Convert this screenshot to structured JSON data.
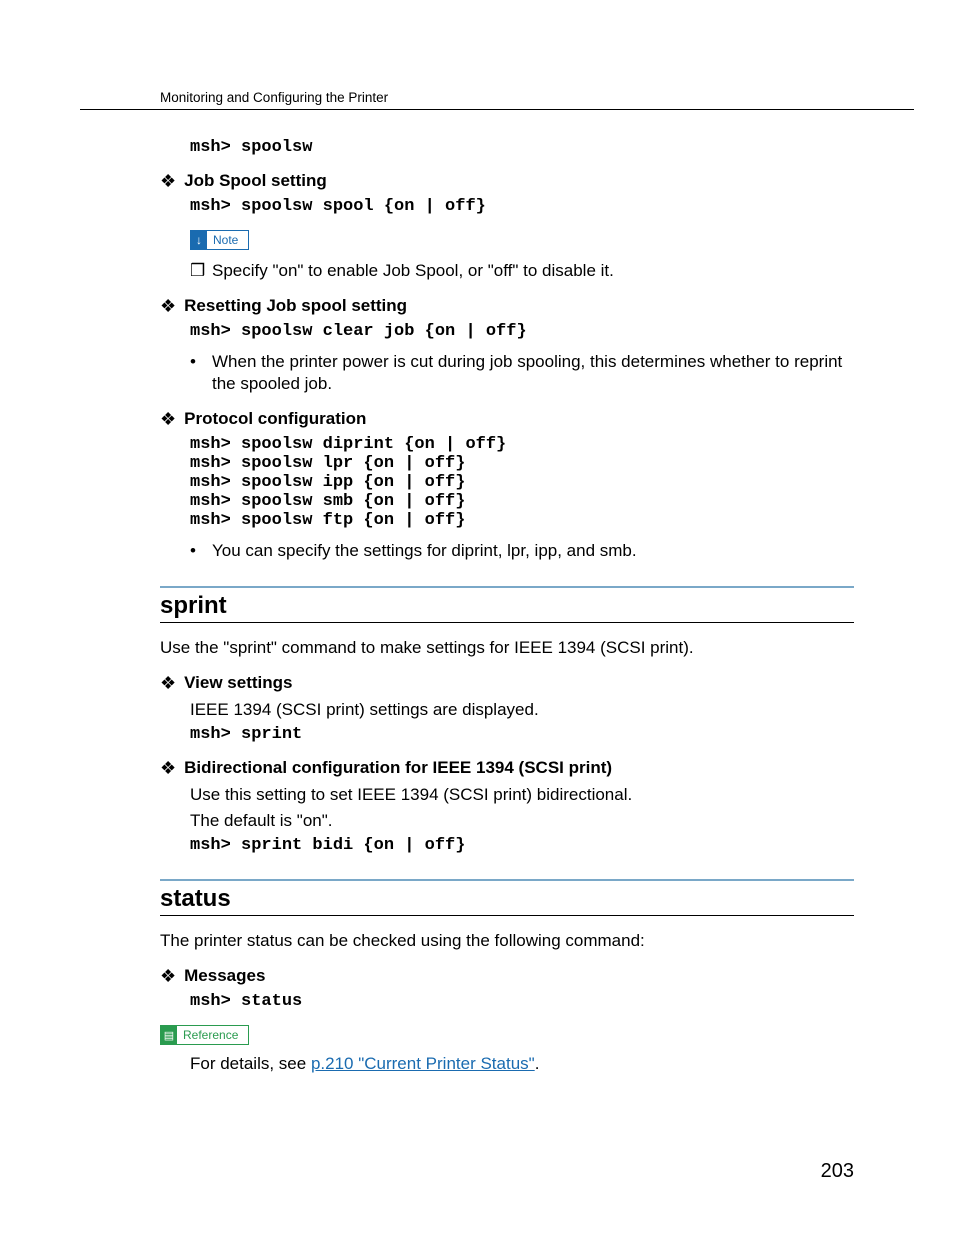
{
  "header": "Monitoring and Configuring the Printer",
  "code1": "msh> spoolsw",
  "s1": {
    "title": "Job Spool setting",
    "code": "msh> spoolsw spool {on | off}",
    "note_label": "Note",
    "note_bullet": "Specify \"on\" to enable Job Spool, or \"off\" to disable it."
  },
  "s2": {
    "title": "Resetting Job spool setting",
    "code": "msh> spoolsw clear job {on | off}",
    "bullet": "When the printer power is cut during job spooling, this determines whether to reprint the spooled job."
  },
  "s3": {
    "title": "Protocol configuration",
    "code": "msh> spoolsw diprint {on | off}\nmsh> spoolsw lpr {on | off}\nmsh> spoolsw ipp {on | off}\nmsh> spoolsw smb {on | off}\nmsh> spoolsw ftp {on | off}",
    "bullet": "You can specify the settings for diprint, lpr, ipp, and smb."
  },
  "sprint": {
    "heading": "sprint",
    "intro": "Use the \"sprint\" command to make settings for IEEE 1394 (SCSI print).",
    "view_title": "View settings",
    "view_text": "IEEE 1394 (SCSI print) settings are displayed.",
    "view_code": "msh> sprint",
    "bidi_title": "Bidirectional configuration for IEEE 1394 (SCSI print)",
    "bidi_text1": "Use this setting to set IEEE 1394 (SCSI print) bidirectional.",
    "bidi_text2": "The default is \"on\".",
    "bidi_code": "msh> sprint bidi {on | off}"
  },
  "status": {
    "heading": "status",
    "intro": "The printer status can be checked using the following command:",
    "msg_title": "Messages",
    "msg_code": "msh> status",
    "ref_label": "Reference",
    "ref_prefix": "For details, see ",
    "ref_link": "p.210 \"Current Printer Status\"",
    "ref_suffix": "."
  },
  "page_number": "203"
}
